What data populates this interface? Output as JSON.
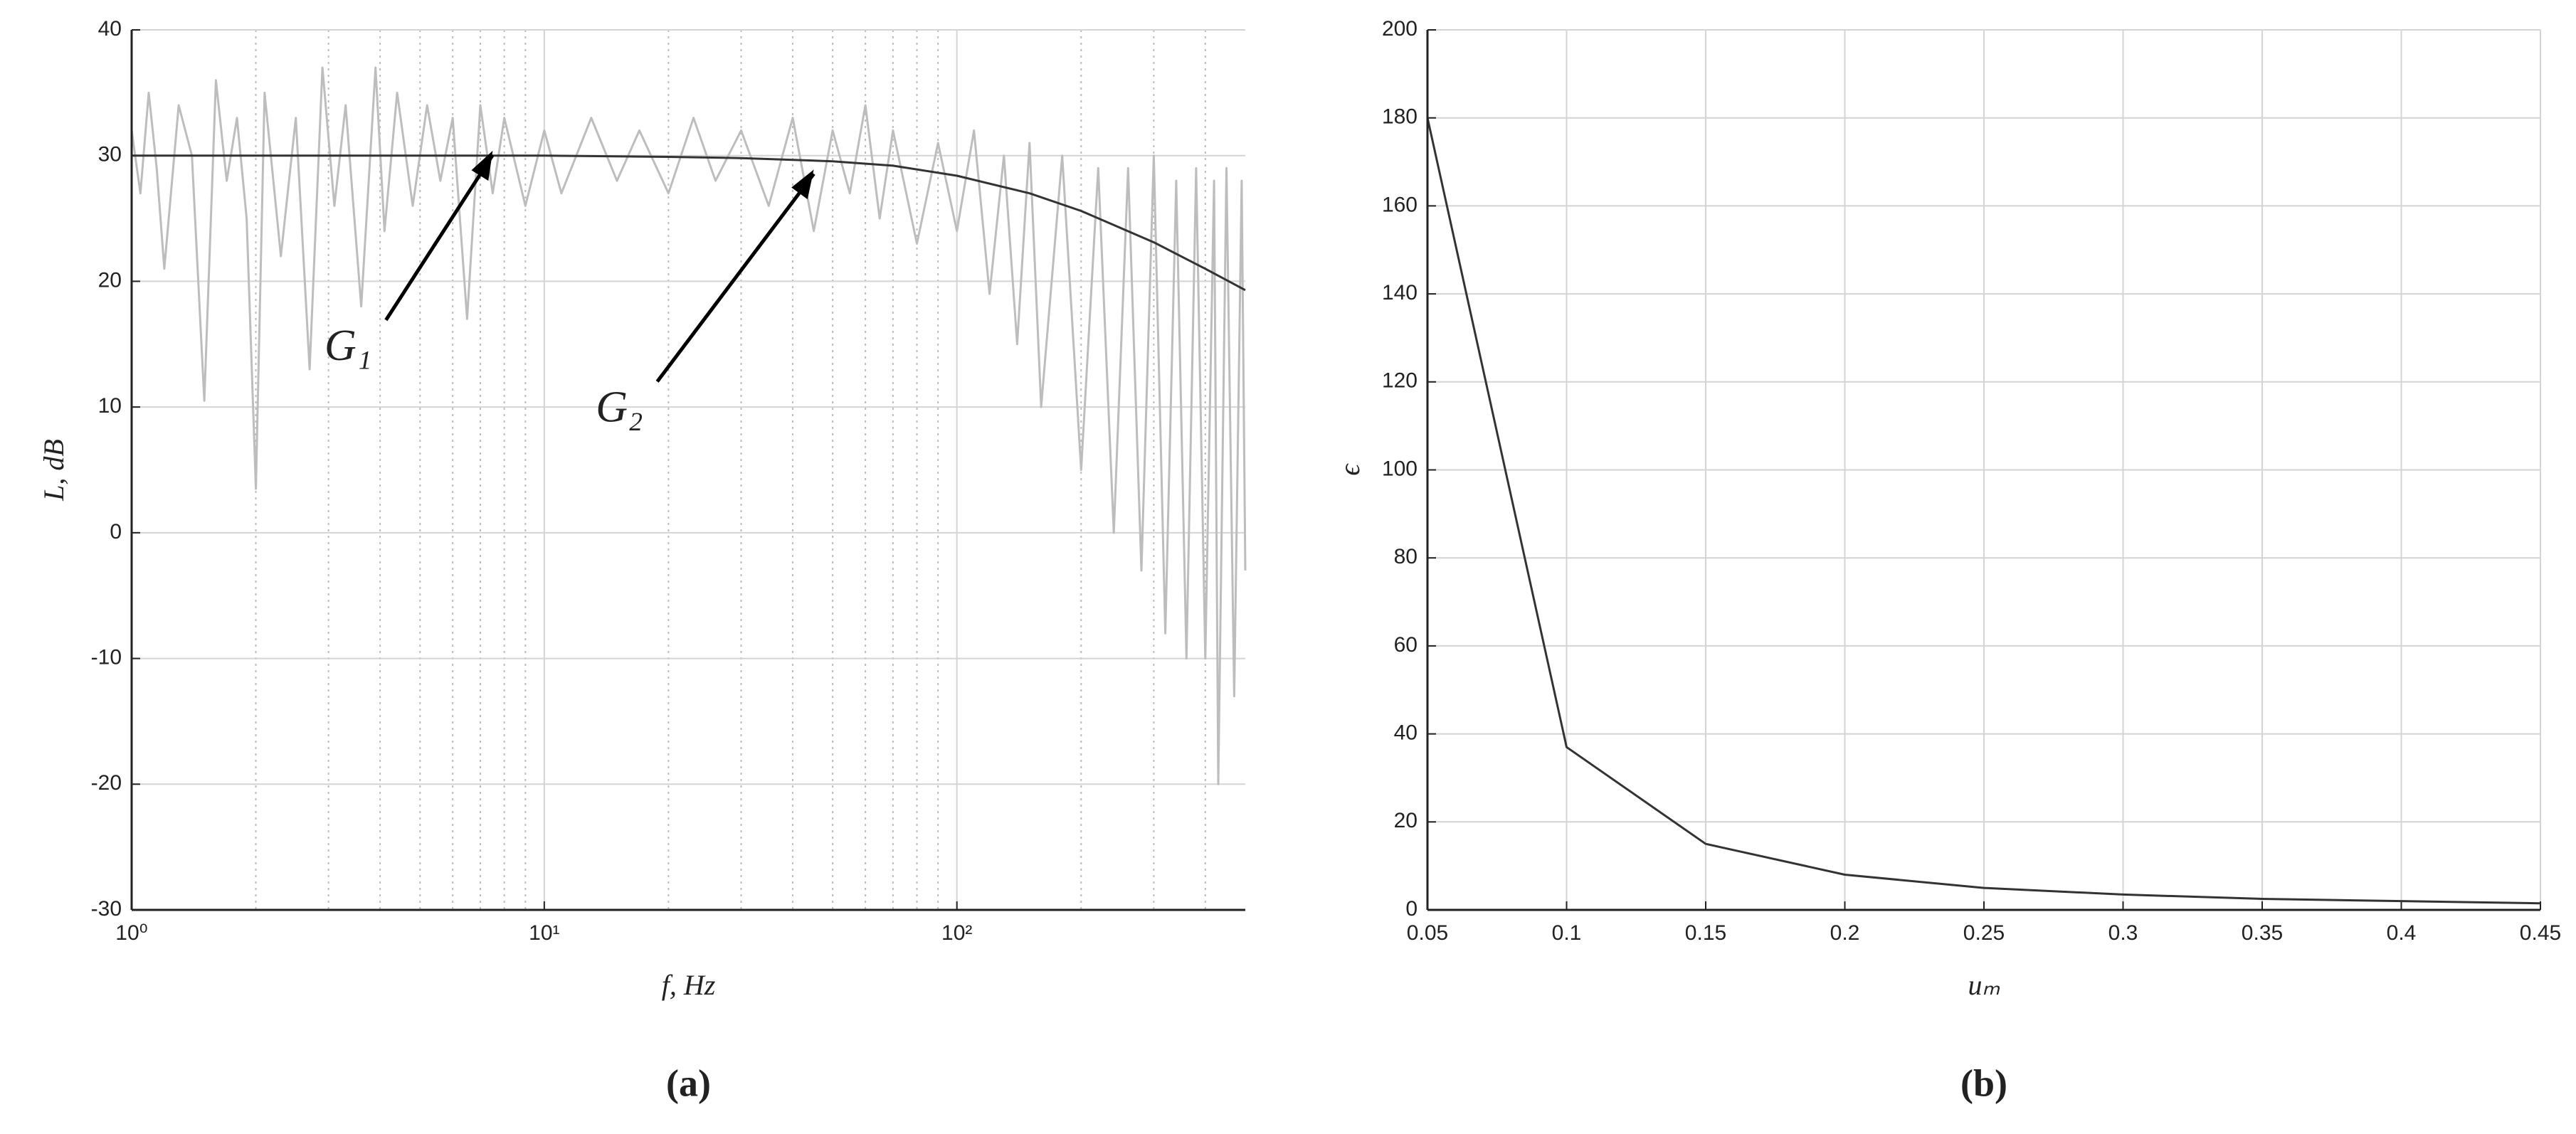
{
  "chart_data": [
    {
      "type": "line",
      "label": "(a)",
      "xlabel": "f, Hz",
      "ylabel": "L, dB",
      "xscale": "log",
      "xlim": [
        1,
        500
      ],
      "ylim": [
        -30,
        40
      ],
      "xticks": [
        {
          "value": 1,
          "label": "10⁰"
        },
        {
          "value": 10,
          "label": "10¹"
        },
        {
          "value": 100,
          "label": "10²"
        }
      ],
      "yticks": [
        -30,
        -20,
        -10,
        0,
        10,
        20,
        30,
        40
      ],
      "grid": true,
      "minor_grid": true,
      "series": [
        {
          "color": "#bdbdbd",
          "x": [
            1,
            1.05,
            1.1,
            1.15,
            1.2,
            1.3,
            1.4,
            1.5,
            1.6,
            1.7,
            1.8,
            1.9,
            2,
            2.1,
            2.3,
            2.5,
            2.7,
            2.9,
            3.1,
            3.3,
            3.6,
            3.9,
            4.1,
            4.4,
            4.8,
            5.2,
            5.6,
            6,
            6.5,
            7,
            7.5,
            8,
            9,
            10,
            11,
            13,
            15,
            17,
            20,
            23,
            26,
            30,
            35,
            40,
            45,
            50,
            55,
            60,
            65,
            70,
            80,
            90,
            100,
            110,
            120,
            130,
            140,
            150,
            160,
            180,
            200,
            220,
            240,
            260,
            280,
            300,
            320,
            340,
            360,
            380,
            400,
            420,
            430,
            450,
            470,
            490,
            500
          ],
          "values": [
            32,
            27,
            35,
            29,
            21,
            34,
            30,
            10.5,
            36,
            28,
            33,
            25,
            3.5,
            35,
            22,
            33,
            13,
            37,
            26,
            34,
            18,
            37,
            24,
            35,
            26,
            34,
            28,
            33,
            17,
            34,
            27,
            33,
            26,
            32,
            27,
            33,
            28,
            32,
            27,
            33,
            28,
            32,
            26,
            33,
            24,
            32,
            27,
            34,
            25,
            32,
            23,
            31,
            24,
            32,
            19,
            30,
            15,
            31,
            10,
            30,
            5,
            29,
            0,
            29,
            -3,
            30,
            -8,
            28,
            -10,
            29,
            -10,
            28,
            -20,
            29,
            -13,
            28,
            -3
          ]
        },
        {
          "color": "#333333",
          "x": [
            1,
            10,
            20,
            30,
            50,
            70,
            100,
            150,
            200,
            300,
            400,
            500
          ],
          "values": [
            30,
            30,
            29.9,
            29.8,
            29.55,
            29.2,
            28.4,
            27,
            25.6,
            23.1,
            21,
            19.3
          ]
        }
      ],
      "annotations": [
        {
          "text": "G₁",
          "x": 7.5,
          "y": 30.5
        },
        {
          "text": "G₂",
          "x": 45,
          "y": 29
        }
      ]
    },
    {
      "type": "line",
      "label": "(b)",
      "xlabel": "uₘ",
      "ylabel": "ϵ",
      "xlim": [
        0.05,
        0.45
      ],
      "ylim": [
        0,
        200
      ],
      "xticks": [
        0.05,
        0.1,
        0.15,
        0.2,
        0.25,
        0.3,
        0.35,
        0.4,
        0.45
      ],
      "yticks": [
        0,
        20,
        40,
        60,
        80,
        100,
        120,
        140,
        160,
        180,
        200
      ],
      "grid": true,
      "series": [
        {
          "color": "#333333",
          "x": [
            0.05,
            0.1,
            0.15,
            0.2,
            0.25,
            0.3,
            0.35,
            0.4,
            0.45
          ],
          "values": [
            180,
            37,
            15,
            8,
            5,
            3.5,
            2.5,
            2,
            1.5
          ]
        }
      ]
    }
  ]
}
